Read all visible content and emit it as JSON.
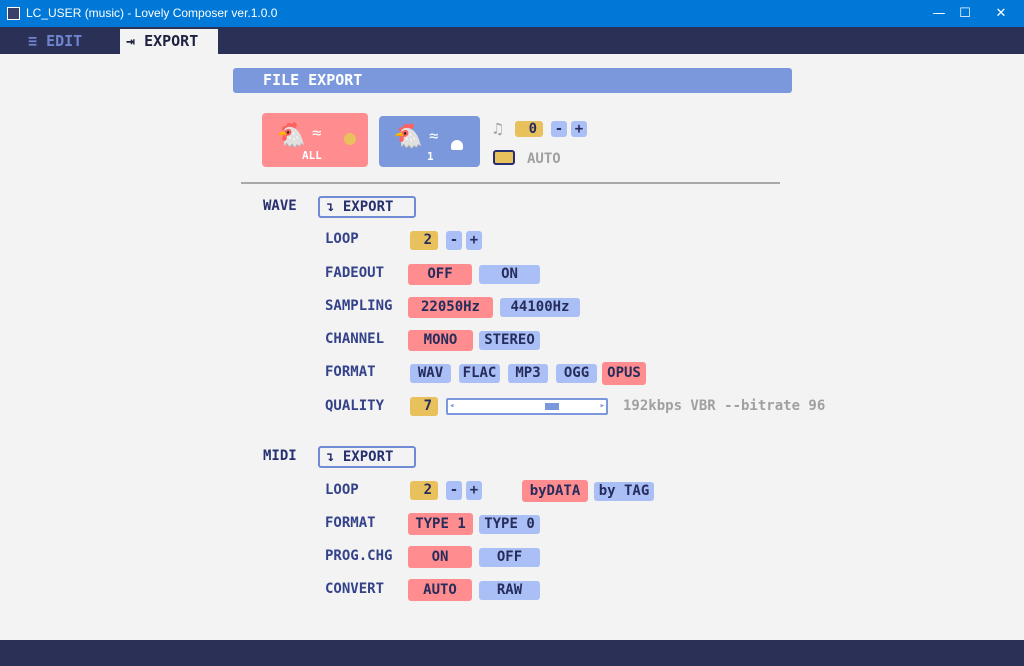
{
  "window": {
    "title": "LC_USER   (music)   - Lovely Composer ver.1.0.0",
    "minimize": "—",
    "maximize": "☐",
    "close": "✕"
  },
  "tabs": [
    {
      "label": "EDIT",
      "icon": "edit-icon",
      "active": false
    },
    {
      "label": "EXPORT",
      "icon": "export-icon",
      "active": true
    }
  ],
  "header": {
    "title": "FILE EXPORT"
  },
  "top": {
    "all_label": "ALL",
    "single_label": "1",
    "note_value": "0",
    "minus": "-",
    "plus": "+",
    "auto_label": "AUTO"
  },
  "wave": {
    "title": "WAVE",
    "export": "EXPORT",
    "loop": {
      "label": "LOOP",
      "value": "2",
      "minus": "-",
      "plus": "+"
    },
    "fadeout": {
      "label": "FADEOUT",
      "options": [
        "OFF",
        "ON"
      ],
      "selected": "OFF"
    },
    "sampling": {
      "label": "SAMPLING",
      "options": [
        "22050Hz",
        "44100Hz"
      ],
      "selected": "22050Hz"
    },
    "channel": {
      "label": "CHANNEL",
      "options": [
        "MONO",
        "STEREO"
      ],
      "selected": "MONO"
    },
    "format": {
      "label": "FORMAT",
      "options": [
        "WAV",
        "FLAC",
        "MP3",
        "OGG",
        "OPUS"
      ],
      "selected": "OPUS"
    },
    "quality": {
      "label": "QUALITY",
      "value": "7",
      "slider_fraction": 0.7,
      "info": "192kbps VBR --bitrate 96"
    }
  },
  "midi": {
    "title": "MIDI",
    "export": "EXPORT",
    "loop": {
      "label": "LOOP",
      "value": "2",
      "minus": "-",
      "plus": "+",
      "options": [
        "byDATA",
        "by TAG"
      ],
      "selected": "byDATA"
    },
    "format": {
      "label": "FORMAT",
      "options": [
        "TYPE 1",
        "TYPE 0"
      ],
      "selected": "TYPE 1"
    },
    "progchg": {
      "label": "PROG.CHG",
      "options": [
        "ON",
        "OFF"
      ],
      "selected": "ON"
    },
    "convert": {
      "label": "CONVERT",
      "options": [
        "AUTO",
        "RAW"
      ],
      "selected": "AUTO"
    }
  },
  "colors": {
    "selected": "#ff8c8f",
    "unselected": "#a9bff5",
    "value": "#e8c05c",
    "header": "#7b98dc",
    "bar": "#2b3057"
  }
}
